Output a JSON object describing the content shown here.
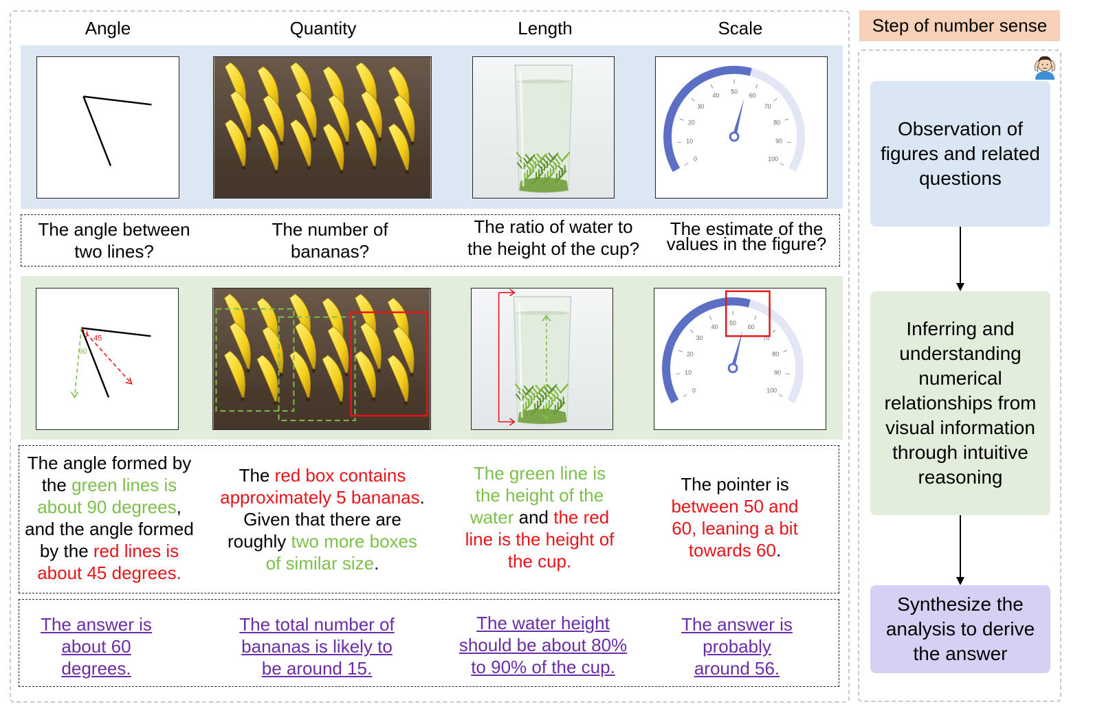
{
  "columns": {
    "angle": "Angle",
    "quantity": "Quantity",
    "length": "Length",
    "scale": "Scale"
  },
  "gauge": {
    "ticks": [
      "0",
      "10",
      "20",
      "30",
      "40",
      "50",
      "60",
      "70",
      "80",
      "90",
      "100"
    ],
    "pointer_value": 56
  },
  "angle_labels": {
    "red": "45",
    "green": "90"
  },
  "questions": {
    "angle": [
      "The angle between",
      "two lines?"
    ],
    "quantity": [
      "The number of",
      "bananas?"
    ],
    "length": [
      "The ratio of water to",
      "the height of the cup?"
    ],
    "scale": [
      "The estimate of the",
      "values in the figure?"
    ]
  },
  "analysis": {
    "angle": {
      "l1": "The angle formed by",
      "l2a": "the ",
      "l2b": "green lines is",
      "l3a": "about 90 degrees",
      "l3b": ",",
      "l4": "and the angle formed",
      "l5a": "by the ",
      "l5b": "red lines is",
      "l6": "about 45 degrees."
    },
    "quantity": {
      "l1a": "The ",
      "l1b": "red box contains",
      "l2a": "approximately 5 bananas",
      "l2b": ".",
      "l3": "Given that there are",
      "l4a": "roughly ",
      "l4b": "two more boxes",
      "l5a": "of similar size",
      "l5b": "."
    },
    "length": {
      "l1": "The green line is",
      "l2": "the height of the",
      "l3a": "water",
      "l3b": " and ",
      "l3c": "the red",
      "l4": "line is the height of",
      "l5": "the cup."
    },
    "scale": {
      "l1": "The pointer is",
      "l2": "between 50 and",
      "l3": "60, leaning a bit",
      "l4a": "towards 60",
      "l4b": "."
    }
  },
  "final": {
    "angle": [
      "The answer is",
      "about 60",
      "degrees."
    ],
    "quantity": [
      "The total number of",
      "bananas is likely to",
      "be around 15."
    ],
    "length": [
      "The water height",
      "should be about 80%",
      "to 90% of the cup."
    ],
    "scale": [
      "The answer is",
      "probably",
      "around 56."
    ]
  },
  "steps": {
    "title": "Step of number sense",
    "observe": "Observation of figures and related questions",
    "infer": "Inferring and understanding numerical relationships from visual information through intuitive reasoning",
    "synthesize": "Synthesize the analysis to derive the answer"
  },
  "colors": {
    "highlight_red": "#e8141a",
    "highlight_green": "#7cc04b",
    "answer_purple": "#6a2da8",
    "gauge_blue": "#5b6fc4"
  }
}
